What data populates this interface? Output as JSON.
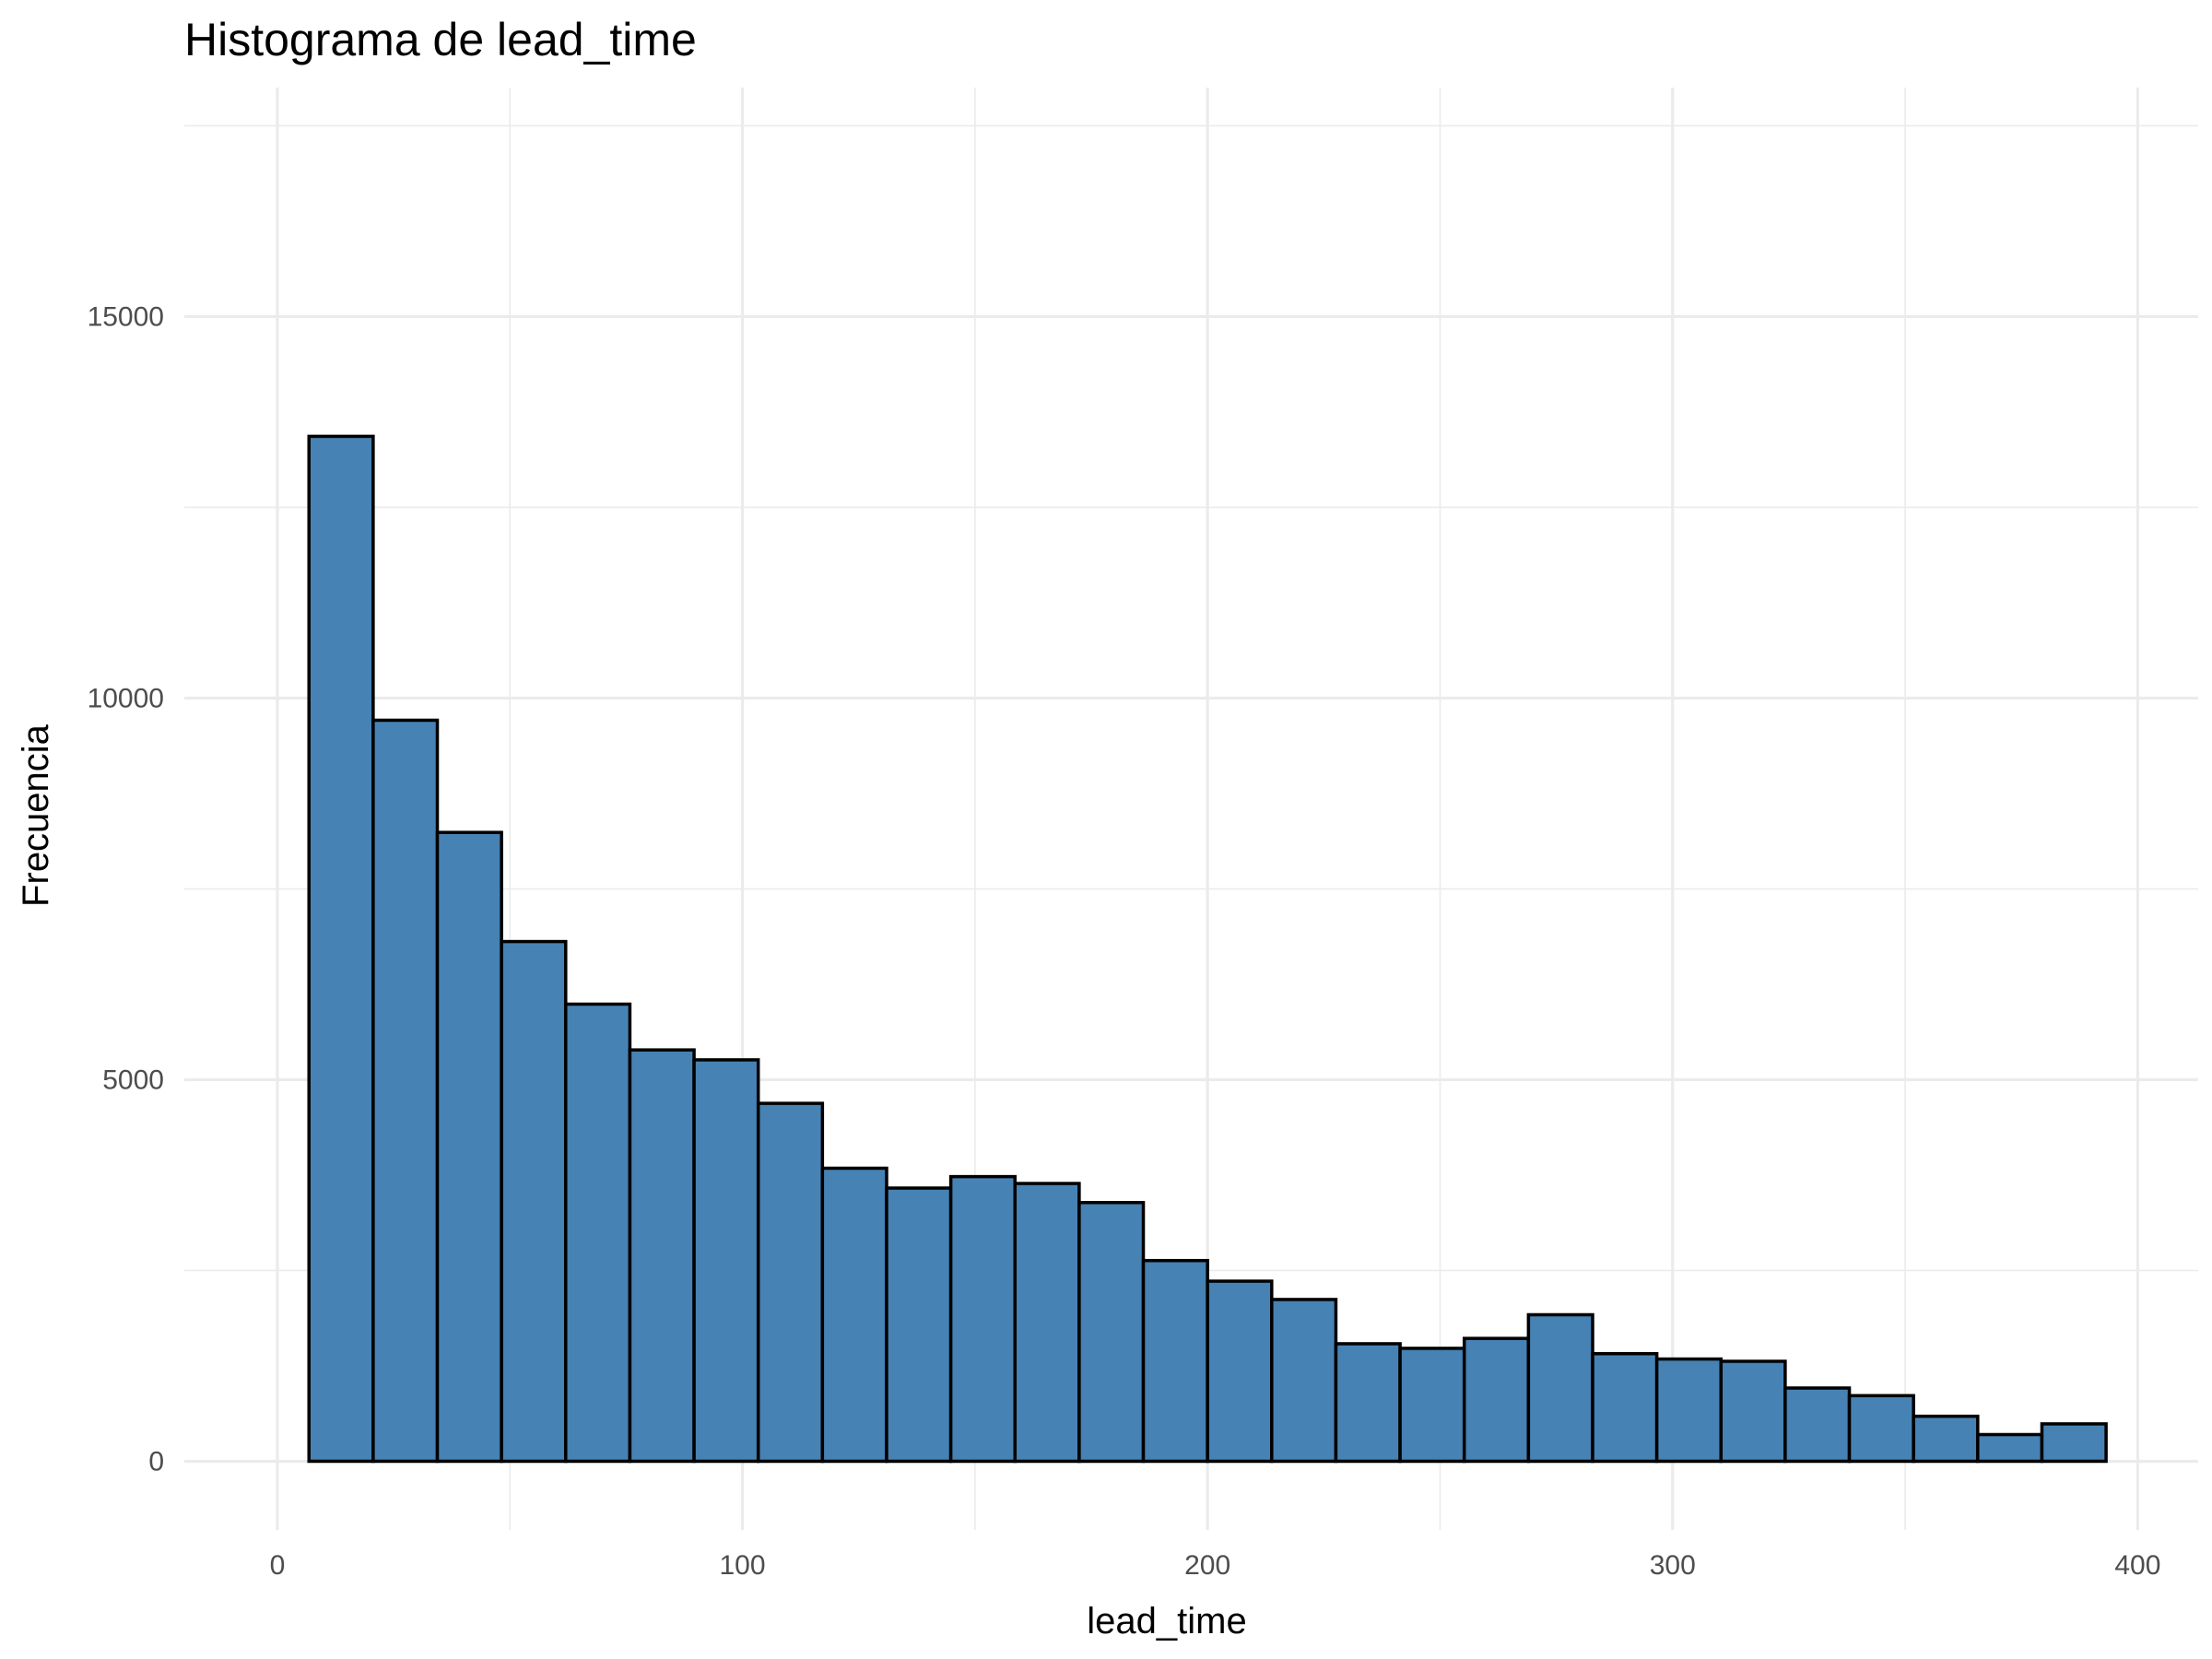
{
  "chart_data": {
    "type": "bar",
    "title": "Histograma de lead_time",
    "xlabel": "lead_time",
    "ylabel": "Frecuencia",
    "xlim": [
      -20,
      413
    ],
    "ylim": [
      -900,
      18000
    ],
    "x_ticks": [
      0,
      100,
      200,
      300,
      400
    ],
    "x_tick_labels": [
      "0",
      "100",
      "200",
      "300",
      "400"
    ],
    "y_ticks": [
      0,
      5000,
      10000,
      15000
    ],
    "y_tick_labels": [
      "0",
      "5000",
      "10000",
      "15000"
    ],
    "grid": true,
    "bar_fill": "#4682B4",
    "bar_outline": "#000000",
    "bin_start": 6.8,
    "bin_width": 13.8,
    "values": [
      13430,
      9710,
      8240,
      6810,
      5990,
      5390,
      5260,
      4690,
      3840,
      3580,
      3730,
      3640,
      3390,
      2630,
      2360,
      2120,
      1540,
      1480,
      1610,
      1920,
      1410,
      1340,
      1310,
      960,
      860,
      590,
      350,
      490
    ]
  }
}
